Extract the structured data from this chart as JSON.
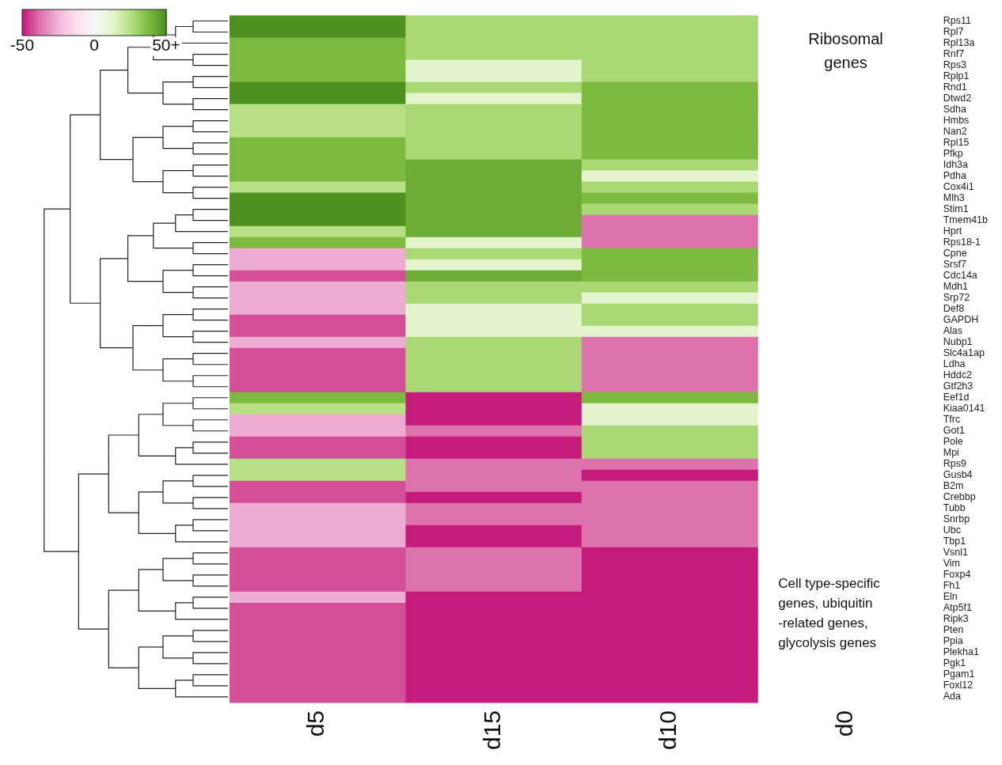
{
  "chart_data": {
    "type": "heatmap",
    "categories": [
      "d5",
      "d15",
      "d10",
      "d0"
    ],
    "y_categories": [
      "Rps11",
      "Rpl7",
      "Rpl13a",
      "Rnf7",
      "Rps3",
      "Rplp1",
      "Rnd1",
      "Dtwd2",
      "Sdha",
      "Hmbs",
      "Nan2",
      "Rpl15",
      "Pfkp",
      "Idh3a",
      "Pdha",
      "Cox4i1",
      "Mlh3",
      "Stim1",
      "Tmem41b",
      "Hprt",
      "Rps18-1",
      "Cpne",
      "Srsf7",
      "Cdc14a",
      "Mdh1",
      "Srp72",
      "Def8",
      "GAPDH",
      "Alas",
      "Nubp1",
      "Slc4a1ap",
      "Ldha",
      "Hddc2",
      "Gtf2h3",
      "Eef1d",
      "Kiaa0141",
      "Tfrc",
      "Got1",
      "Pole",
      "Mpi",
      "Rps9",
      "Gusb4",
      "B2m",
      "Crebbp",
      "Tubb",
      "Snrbp",
      "Ubc",
      "Tbp1",
      "Vsnl1",
      "Vim",
      "Foxp4",
      "Fh1",
      "Eln",
      "Atp5f1",
      "Ripk3",
      "Pten",
      "Ppia",
      "Plekha1",
      "Pgk1",
      "Pgam1",
      "Foxl12",
      "Ada"
    ],
    "cells": [
      [
        50,
        28,
        28,
        null
      ],
      [
        50,
        28,
        28,
        null
      ],
      [
        38,
        28,
        28,
        null
      ],
      [
        38,
        28,
        28,
        null
      ],
      [
        38,
        13,
        28,
        null
      ],
      [
        38,
        13,
        28,
        null
      ],
      [
        50,
        28,
        38,
        null
      ],
      [
        50,
        13,
        38,
        null
      ],
      [
        25,
        28,
        38,
        null
      ],
      [
        25,
        28,
        38,
        null
      ],
      [
        25,
        28,
        38,
        null
      ],
      [
        38,
        28,
        38,
        null
      ],
      [
        38,
        28,
        38,
        null
      ],
      [
        38,
        42,
        28,
        null
      ],
      [
        38,
        42,
        13,
        null
      ],
      [
        25,
        42,
        28,
        null
      ],
      [
        50,
        42,
        38,
        null
      ],
      [
        50,
        42,
        28,
        null
      ],
      [
        50,
        42,
        -38,
        null
      ],
      [
        25,
        42,
        -38,
        null
      ],
      [
        38,
        13,
        -38,
        null
      ],
      [
        -27,
        28,
        38,
        null
      ],
      [
        -27,
        13,
        38,
        null
      ],
      [
        -43,
        42,
        38,
        null
      ],
      [
        -27,
        28,
        28,
        null
      ],
      [
        -27,
        28,
        13,
        null
      ],
      [
        -27,
        13,
        28,
        null
      ],
      [
        -43,
        13,
        28,
        null
      ],
      [
        -43,
        13,
        13,
        null
      ],
      [
        -27,
        28,
        -38,
        null
      ],
      [
        -43,
        28,
        -38,
        null
      ],
      [
        -43,
        28,
        -38,
        null
      ],
      [
        -43,
        28,
        -38,
        null
      ],
      [
        -43,
        28,
        -38,
        null
      ],
      [
        38,
        -50,
        38,
        null
      ],
      [
        25,
        -50,
        13,
        null
      ],
      [
        -27,
        -50,
        13,
        null
      ],
      [
        -27,
        -38,
        28,
        null
      ],
      [
        -43,
        -50,
        28,
        null
      ],
      [
        -43,
        -50,
        28,
        null
      ],
      [
        25,
        -38,
        -38,
        null
      ],
      [
        25,
        -38,
        -50,
        null
      ],
      [
        -43,
        -38,
        -38,
        null
      ],
      [
        -43,
        -50,
        -38,
        null
      ],
      [
        -27,
        -38,
        -38,
        null
      ],
      [
        -27,
        -38,
        -38,
        null
      ],
      [
        -27,
        -50,
        -38,
        null
      ],
      [
        -27,
        -50,
        -38,
        null
      ],
      [
        -43,
        -38,
        -50,
        null
      ],
      [
        -43,
        -38,
        -50,
        null
      ],
      [
        -43,
        -38,
        -50,
        null
      ],
      [
        -43,
        -38,
        -50,
        null
      ],
      [
        -27,
        -50,
        -50,
        null
      ],
      [
        -43,
        -50,
        -50,
        null
      ],
      [
        -43,
        -50,
        -50,
        null
      ],
      [
        -43,
        -50,
        -50,
        null
      ],
      [
        -43,
        -50,
        -50,
        null
      ],
      [
        -43,
        -50,
        -50,
        null
      ],
      [
        -43,
        -50,
        -50,
        null
      ],
      [
        -43,
        -50,
        -50,
        null
      ],
      [
        -43,
        -50,
        -50,
        null
      ],
      [
        -43,
        -50,
        -50,
        null
      ]
    ],
    "clim": [
      -50,
      50
    ],
    "cticks": [
      -50,
      0,
      {
        "value": 50,
        "label": "50+"
      }
    ],
    "annotations": [
      "Ribosomal genes",
      "Cell type-specific genes, ubiquitin -related genes, glycolysis genes"
    ]
  }
}
